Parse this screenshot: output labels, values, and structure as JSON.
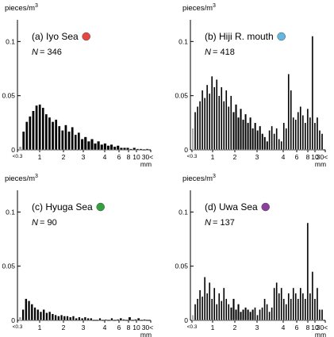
{
  "chart_data": [
    {
      "type": "bar",
      "panel_label": "(a) Iyo Sea",
      "n_label": "N",
      "n_value": "= 346",
      "marker_color": "#e8473f",
      "yunit": "pieces/m3",
      "ylim": [
        0,
        0.12
      ],
      "yticks": [
        "0",
        "0.05",
        "0.1"
      ],
      "xticks": [
        "<0.3",
        "1",
        "2",
        "3",
        "4",
        "6",
        "8",
        "10",
        "30<"
      ],
      "xunit": "mm",
      "grid": false,
      "bar_ranges": [
        [
          0,
          18
        ]
      ],
      "values": [
        0.003,
        0.017,
        0.026,
        0.031,
        0.036,
        0.041,
        0.042,
        0.039,
        0.033,
        0.03,
        0.026,
        0.028,
        0.022,
        0.018,
        0.023,
        0.017,
        0.021,
        0.014,
        0.016,
        0.01,
        0.012,
        0.008,
        0.01,
        0.006,
        0.008,
        0.005,
        0.006,
        0.004,
        0.005,
        0.003,
        0.004,
        0.002,
        0.002,
        0.002,
        0.001,
        0.002,
        0.001,
        0.001,
        0,
        0.001
      ]
    },
    {
      "type": "bar",
      "panel_label": "(b) Hiji R. mouth",
      "n_label": "N",
      "n_value": "= 418",
      "marker_color": "#62b8e2",
      "yunit": "pieces/m3",
      "ylim": [
        0,
        0.12
      ],
      "yticks": [
        "0",
        "0.05",
        "0.1"
      ],
      "xticks": [
        "<0.3",
        "1",
        "2",
        "3",
        "4",
        "6",
        "8",
        "10",
        "30<"
      ],
      "xunit": "mm",
      "grid": false,
      "bar_ranges": [
        [
          0,
          16
        ],
        [
          32,
          54
        ]
      ],
      "values": [
        0.02,
        0.035,
        0.04,
        0.045,
        0.055,
        0.048,
        0.06,
        0.052,
        0.068,
        0.058,
        0.065,
        0.05,
        0.058,
        0.045,
        0.055,
        0.04,
        0.05,
        0.035,
        0.042,
        0.03,
        0.038,
        0.028,
        0.033,
        0.025,
        0.03,
        0.02,
        0.025,
        0.018,
        0.022,
        0.015,
        0.012,
        0.008,
        0.018,
        0.022,
        0.015,
        0.02,
        0.01,
        0.008,
        0.025,
        0.02,
        0.07,
        0.055,
        0.03,
        0.028,
        0.035,
        0.04,
        0.032,
        0.025,
        0.038,
        0.03,
        0.105,
        0.025,
        0.03,
        0.018,
        0.015
      ]
    },
    {
      "type": "bar",
      "panel_label": "(c) Hyuga Sea",
      "n_label": "N",
      "n_value": "= 90",
      "marker_color": "#33a13e",
      "yunit": "pieces/m3",
      "ylim": [
        0,
        0.12
      ],
      "yticks": [
        "0",
        "0.05",
        "0.1"
      ],
      "xticks": [
        "<0.3",
        "1",
        "2",
        "3",
        "4",
        "6",
        "8",
        "10",
        "30<"
      ],
      "xunit": "mm",
      "grid": false,
      "bar_ranges": [
        [
          0,
          32
        ]
      ],
      "values": [
        0.003,
        0.01,
        0.02,
        0.018,
        0.015,
        0.012,
        0.01,
        0.008,
        0.01,
        0.007,
        0.008,
        0.006,
        0.005,
        0.004,
        0.005,
        0.004,
        0.004,
        0.003,
        0.004,
        0.002,
        0.003,
        0.002,
        0.003,
        0.002,
        0.002,
        0,
        0,
        0.002,
        0,
        0.001,
        0,
        0.002,
        0,
        0.001,
        0.002,
        0.001,
        0,
        0.003,
        0,
        0.001,
        0.002,
        0,
        0.001,
        0
      ]
    },
    {
      "type": "bar",
      "panel_label": "(d) Uwa Sea",
      "n_label": "N",
      "n_value": "= 137",
      "marker_color": "#8e3f9e",
      "yunit": "pieces/m3",
      "ylim": [
        0,
        0.12
      ],
      "yticks": [
        "0",
        "0.05",
        "0.1"
      ],
      "xticks": [
        "<0.3",
        "1",
        "2",
        "3",
        "4",
        "6",
        "8",
        "10",
        "30<"
      ],
      "xunit": "mm",
      "grid": false,
      "bar_ranges": [
        [
          0,
          15
        ],
        [
          26,
          54
        ]
      ],
      "values": [
        0.005,
        0.015,
        0.02,
        0.028,
        0.022,
        0.04,
        0.025,
        0.035,
        0.02,
        0.03,
        0.015,
        0.025,
        0.018,
        0.03,
        0.02,
        0.015,
        0.012,
        0.02,
        0.01,
        0.015,
        0.008,
        0.01,
        0.012,
        0.01,
        0.008,
        0.01,
        0.012,
        0.005,
        0.01,
        0.012,
        0.02,
        0.015,
        0.008,
        0.012,
        0.03,
        0.035,
        0.025,
        0.03,
        0.02,
        0.015,
        0.025,
        0.02,
        0.03,
        0.025,
        0.02,
        0.03,
        0.025,
        0.02,
        0.09,
        0.025,
        0.045,
        0.02,
        0.03,
        0.01,
        0.01
      ]
    }
  ]
}
